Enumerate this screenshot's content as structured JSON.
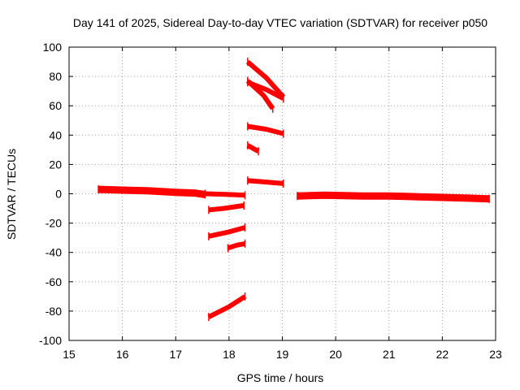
{
  "chart_data": {
    "type": "scatter",
    "title": "Day 141 of 2025, Sidereal Day-to-day VTEC variation (SDTVAR) for receiver p050",
    "xlabel": "GPS time / hours",
    "ylabel": "SDTVAR / TECUs",
    "xlim": [
      15,
      23
    ],
    "ylim": [
      -100,
      100
    ],
    "xticks": [
      15,
      16,
      17,
      18,
      19,
      20,
      21,
      22,
      23
    ],
    "yticks": [
      -100,
      -80,
      -60,
      -40,
      -20,
      0,
      20,
      40,
      60,
      80,
      100
    ],
    "grid": true,
    "marker": "+",
    "color": "#ff0000",
    "series": [
      {
        "name": "arc-1",
        "thick": true,
        "x": [
          15.55,
          16.0,
          16.5,
          17.0,
          17.35,
          17.55
        ],
        "y": [
          3,
          2.5,
          2,
          1,
          0.5,
          -0.5
        ]
      },
      {
        "name": "arc-2",
        "x": [
          17.55,
          18.0,
          18.3
        ],
        "y": [
          0,
          -0.5,
          -1
        ]
      },
      {
        "name": "arc-3",
        "x": [
          17.62,
          17.9,
          18.28
        ],
        "y": [
          -11,
          -10,
          -8
        ]
      },
      {
        "name": "arc-4",
        "x": [
          17.62,
          18.0,
          18.3
        ],
        "y": [
          -29,
          -26,
          -23
        ]
      },
      {
        "name": "arc-5",
        "x": [
          17.98,
          18.15,
          18.3
        ],
        "y": [
          -37,
          -35,
          -34
        ]
      },
      {
        "name": "arc-6",
        "x": [
          17.62,
          18.0,
          18.3
        ],
        "y": [
          -84,
          -77,
          -70
        ]
      },
      {
        "name": "arc-7",
        "x": [
          18.35,
          18.7,
          19.02
        ],
        "y": [
          9,
          8,
          7
        ]
      },
      {
        "name": "arc-8",
        "x": [
          18.35,
          18.55
        ],
        "y": [
          33,
          29
        ]
      },
      {
        "name": "arc-9",
        "x": [
          18.35,
          18.7,
          19.02
        ],
        "y": [
          46,
          44,
          41
        ]
      },
      {
        "name": "arc-10",
        "x": [
          18.35,
          18.65,
          18.82
        ],
        "y": [
          77,
          67,
          58
        ]
      },
      {
        "name": "arc-11",
        "x": [
          18.35,
          18.7,
          19.02
        ],
        "y": [
          76,
          71,
          65
        ]
      },
      {
        "name": "arc-12",
        "x": [
          18.35,
          18.7,
          19.02
        ],
        "y": [
          90,
          79,
          66
        ]
      },
      {
        "name": "arc-13",
        "thick": true,
        "x": [
          19.28,
          19.8,
          20.5,
          21.0,
          21.5,
          22.0,
          22.5,
          22.88
        ],
        "y": [
          -1.5,
          -1,
          -1.5,
          -1.5,
          -2,
          -2.5,
          -3,
          -3.5
        ]
      }
    ]
  }
}
